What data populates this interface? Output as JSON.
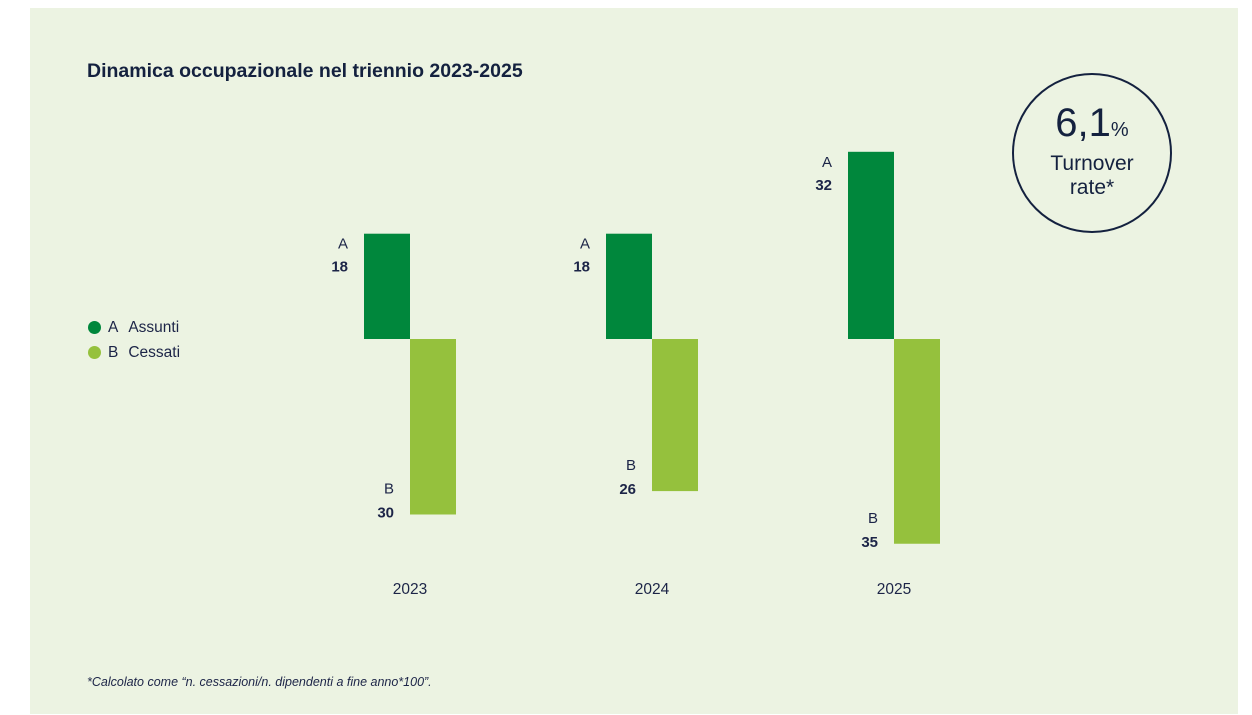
{
  "title": "Dinamica occupazionale nel triennio 2023-2025",
  "legend": [
    {
      "letter": "A",
      "label": "Assunti",
      "color": "#00873c"
    },
    {
      "letter": "B",
      "label": "Cessati",
      "color": "#95c13d"
    }
  ],
  "kpi": {
    "value": "6,1",
    "unit": "%",
    "label": "Turnover rate*"
  },
  "footnote": "*Calcolato come “n. cessazioni/n. dipendenti a fine anno*100”.",
  "chart_data": {
    "type": "bar",
    "categories": [
      "2023",
      "2024",
      "2025"
    ],
    "series": [
      {
        "name": "Assunti",
        "letter": "A",
        "values": [
          18,
          18,
          32
        ],
        "color": "#00873c",
        "direction": "up"
      },
      {
        "name": "Cessati",
        "letter": "B",
        "values": [
          30,
          26,
          35
        ],
        "color": "#95c13d",
        "direction": "down"
      }
    ]
  }
}
